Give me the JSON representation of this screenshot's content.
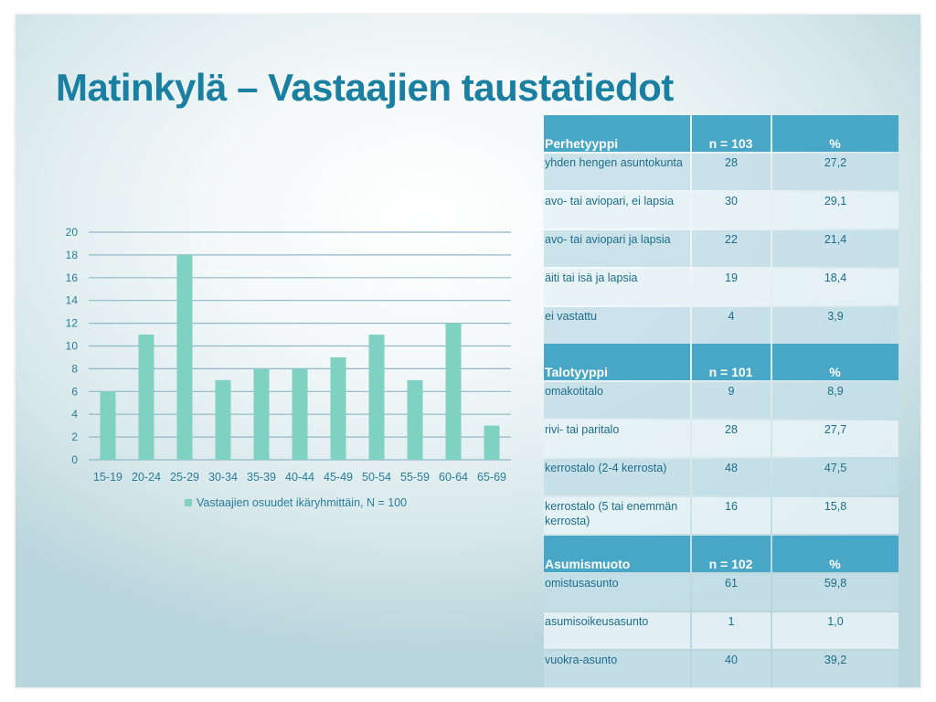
{
  "title": "Matinkylä – Vastaajien taustatiedot",
  "chart_data": {
    "type": "bar",
    "categories": [
      "15-19",
      "20-24",
      "25-29",
      "30-34",
      "35-39",
      "40-44",
      "45-49",
      "50-54",
      "55-59",
      "60-64",
      "65-69"
    ],
    "series": [
      {
        "name": "Vastaajien osuudet ikäryhmittäin, N = 100",
        "values": [
          6,
          11,
          18,
          7,
          8,
          8,
          9,
          11,
          7,
          12,
          3
        ]
      }
    ],
    "ylim": [
      0,
      20
    ],
    "yticks": [
      0,
      2,
      4,
      6,
      8,
      10,
      12,
      14,
      16,
      18,
      20
    ],
    "grid": true,
    "legend": "bottom",
    "bar_color": "#7fd1c1",
    "grid_color": "#8fb8c8",
    "label_color": "#2a7d9a"
  },
  "tables": [
    {
      "headers": [
        "Perhetyyppi",
        "n = 103",
        "%"
      ],
      "rows": [
        [
          "yhden hengen asuntokunta",
          "28",
          "27,2"
        ],
        [
          "avo- tai aviopari, ei lapsia",
          "30",
          "29,1"
        ],
        [
          "avo- tai aviopari ja lapsia",
          "22",
          "21,4"
        ],
        [
          "äiti tai isä ja lapsia",
          "19",
          "18,4"
        ],
        [
          "ei vastattu",
          "4",
          "3,9"
        ]
      ]
    },
    {
      "headers": [
        "Talotyyppi",
        "n = 101",
        "%"
      ],
      "rows": [
        [
          "omakotitalo",
          "9",
          "8,9"
        ],
        [
          "rivi- tai paritalo",
          "28",
          "27,7"
        ],
        [
          "kerrostalo (2-4 kerrosta)",
          "48",
          "47,5"
        ],
        [
          "kerrostalo (5 tai enemmän kerrosta)",
          "16",
          "15,8"
        ]
      ]
    },
    {
      "headers": [
        "Asumismuoto",
        "n = 102",
        "%"
      ],
      "rows": [
        [
          "omistusasunto",
          "61",
          "59,8"
        ],
        [
          "asumisoikeusasunto",
          "1",
          "1,0"
        ],
        [
          "vuokra-asunto",
          "40",
          "39,2"
        ]
      ]
    }
  ],
  "colors": {
    "header_bg": "#48a7c7",
    "title": "#1a7fa0"
  }
}
